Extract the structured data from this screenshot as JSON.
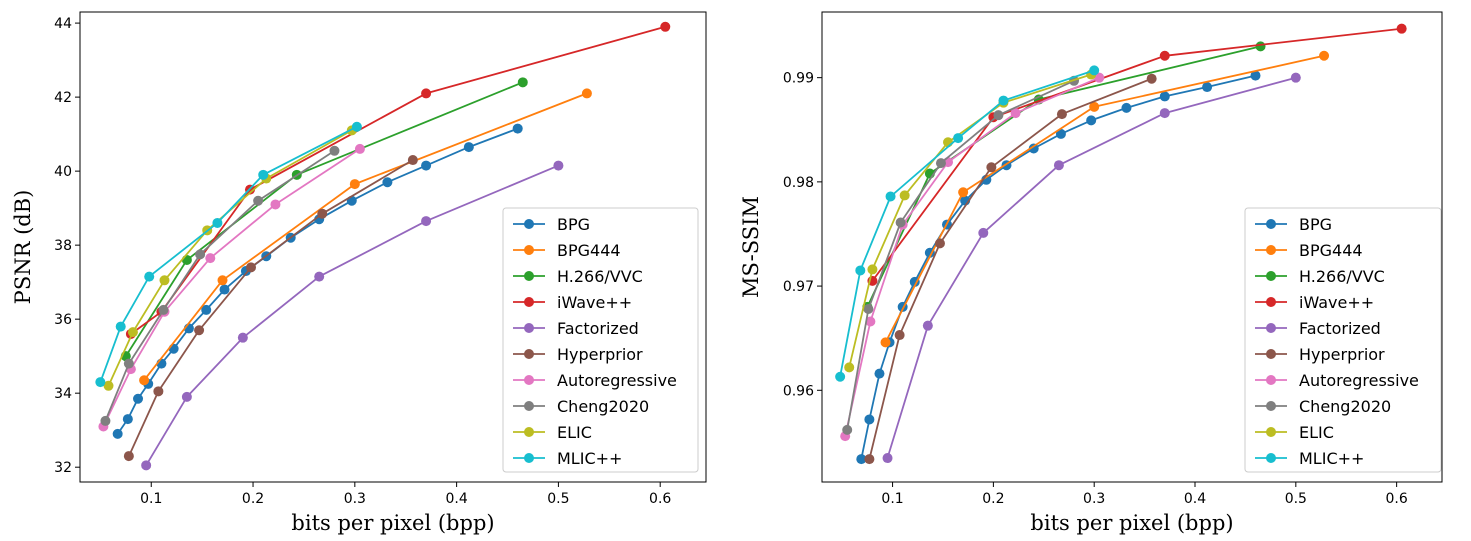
{
  "chart_data": [
    {
      "type": "line",
      "xlabel": "bits per pixel (bpp)",
      "ylabel": "PSNR (dB)",
      "xlim": [
        0.03,
        0.645
      ],
      "ylim": [
        31.6,
        44.3
      ],
      "xticks": [
        0.1,
        0.2,
        0.3,
        0.4,
        0.5,
        0.6
      ],
      "yticks": [
        32,
        34,
        36,
        38,
        40,
        42,
        44
      ],
      "xtick_labels": [
        "0.1",
        "0.2",
        "0.3",
        "0.4",
        "0.5",
        "0.6"
      ],
      "ytick_labels": [
        "32",
        "34",
        "36",
        "38",
        "40",
        "42",
        "44"
      ],
      "legend_position": "lower-right",
      "series": [
        {
          "name": "BPG",
          "color": "#1f77b4",
          "x": [
            0.067,
            0.077,
            0.087,
            0.097,
            0.11,
            0.122,
            0.137,
            0.154,
            0.172,
            0.193,
            0.213,
            0.237,
            0.265,
            0.297,
            0.332,
            0.37,
            0.412,
            0.46
          ],
          "y": [
            32.9,
            33.3,
            33.85,
            34.25,
            34.8,
            35.2,
            35.75,
            36.25,
            36.8,
            37.3,
            37.7,
            38.2,
            38.7,
            39.2,
            39.7,
            40.15,
            40.65,
            41.15
          ]
        },
        {
          "name": "BPG444",
          "color": "#ff7f0e",
          "x": [
            0.093,
            0.17,
            0.3,
            0.528
          ],
          "y": [
            34.35,
            37.05,
            39.65,
            42.1
          ]
        },
        {
          "name": "H.266/VVC",
          "color": "#2ca02c",
          "x": [
            0.075,
            0.135,
            0.243,
            0.465
          ],
          "y": [
            35.0,
            37.6,
            39.9,
            42.4
          ]
        },
        {
          "name": "iWave++",
          "color": "#d62728",
          "x": [
            0.08,
            0.11,
            0.197,
            0.37,
            0.605
          ],
          "y": [
            35.6,
            36.2,
            39.5,
            42.1,
            43.9
          ]
        },
        {
          "name": "Factorized",
          "color": "#9467bd",
          "x": [
            0.095,
            0.135,
            0.19,
            0.265,
            0.37,
            0.5
          ],
          "y": [
            32.05,
            33.9,
            35.5,
            37.15,
            38.65,
            40.15
          ]
        },
        {
          "name": "Hyperprior",
          "color": "#8c564b",
          "x": [
            0.078,
            0.107,
            0.147,
            0.198,
            0.268,
            0.357
          ],
          "y": [
            32.3,
            34.05,
            35.7,
            37.4,
            38.85,
            40.3
          ]
        },
        {
          "name": "Autoregressive",
          "color": "#e377c2",
          "x": [
            0.053,
            0.08,
            0.113,
            0.158,
            0.222,
            0.305
          ],
          "y": [
            33.1,
            34.65,
            36.2,
            37.65,
            39.1,
            40.6
          ]
        },
        {
          "name": "Cheng2020",
          "color": "#7f7f7f",
          "x": [
            0.055,
            0.078,
            0.112,
            0.148,
            0.205,
            0.28
          ],
          "y": [
            33.25,
            34.8,
            36.25,
            37.75,
            39.2,
            40.55
          ]
        },
        {
          "name": "ELIC",
          "color": "#bcbd22",
          "x": [
            0.058,
            0.082,
            0.113,
            0.155,
            0.213,
            0.297
          ],
          "y": [
            34.2,
            35.65,
            37.05,
            38.4,
            39.8,
            41.1
          ]
        },
        {
          "name": "MLIC++",
          "color": "#17becf",
          "x": [
            0.05,
            0.07,
            0.098,
            0.165,
            0.21,
            0.302
          ],
          "y": [
            34.3,
            35.8,
            37.15,
            38.6,
            39.9,
            41.2
          ]
        }
      ]
    },
    {
      "type": "line",
      "xlabel": "bits per pixel (bpp)",
      "ylabel": "MS-SSIM",
      "xlim": [
        0.03,
        0.645
      ],
      "ylim": [
        0.9512,
        0.9963
      ],
      "xticks": [
        0.1,
        0.2,
        0.3,
        0.4,
        0.5,
        0.6
      ],
      "yticks": [
        0.96,
        0.97,
        0.98,
        0.99
      ],
      "xtick_labels": [
        "0.1",
        "0.2",
        "0.3",
        "0.4",
        "0.5",
        "0.6"
      ],
      "ytick_labels": [
        "0.96",
        "0.97",
        "0.98",
        "0.99"
      ],
      "legend_position": "lower-right",
      "series": [
        {
          "name": "BPG",
          "color": "#1f77b4",
          "x": [
            0.069,
            0.077,
            0.087,
            0.097,
            0.11,
            0.122,
            0.137,
            0.154,
            0.172,
            0.193,
            0.213,
            0.24,
            0.267,
            0.297,
            0.332,
            0.37,
            0.412,
            0.46
          ],
          "y": [
            0.9534,
            0.9572,
            0.9616,
            0.9646,
            0.968,
            0.9704,
            0.9732,
            0.9759,
            0.9782,
            0.9802,
            0.9816,
            0.9832,
            0.9846,
            0.9859,
            0.9871,
            0.9882,
            0.9891,
            0.9902
          ]
        },
        {
          "name": "BPG444",
          "color": "#ff7f0e",
          "x": [
            0.093,
            0.17,
            0.3,
            0.528
          ],
          "y": [
            0.9646,
            0.979,
            0.9872,
            0.9921
          ]
        },
        {
          "name": "H.266/VVC",
          "color": "#2ca02c",
          "x": [
            0.075,
            0.137,
            0.245,
            0.465
          ],
          "y": [
            0.968,
            0.9808,
            0.9879,
            0.993
          ]
        },
        {
          "name": "iWave++",
          "color": "#d62728",
          "x": [
            0.08,
            0.2,
            0.37,
            0.605
          ],
          "y": [
            0.9705,
            0.9862,
            0.9921,
            0.9947
          ]
        },
        {
          "name": "Factorized",
          "color": "#9467bd",
          "x": [
            0.095,
            0.135,
            0.19,
            0.265,
            0.37,
            0.5
          ],
          "y": [
            0.9535,
            0.9662,
            0.9751,
            0.9816,
            0.9866,
            0.99
          ]
        },
        {
          "name": "Hyperprior",
          "color": "#8c564b",
          "x": [
            0.077,
            0.107,
            0.147,
            0.198,
            0.268,
            0.357
          ],
          "y": [
            0.9534,
            0.9653,
            0.9741,
            0.9814,
            0.9865,
            0.9899
          ]
        },
        {
          "name": "Autoregressive",
          "color": "#e377c2",
          "x": [
            0.053,
            0.078,
            0.11,
            0.155,
            0.222,
            0.305
          ],
          "y": [
            0.9556,
            0.9666,
            0.9759,
            0.9819,
            0.9866,
            0.99
          ]
        },
        {
          "name": "Cheng2020",
          "color": "#7f7f7f",
          "x": [
            0.055,
            0.076,
            0.108,
            0.148,
            0.205,
            0.28
          ],
          "y": [
            0.9562,
            0.9678,
            0.9761,
            0.9818,
            0.9864,
            0.9897
          ]
        },
        {
          "name": "ELIC",
          "color": "#bcbd22",
          "x": [
            0.057,
            0.08,
            0.112,
            0.155,
            0.21,
            0.297
          ],
          "y": [
            0.9622,
            0.9716,
            0.9787,
            0.9838,
            0.9876,
            0.9903
          ]
        },
        {
          "name": "MLIC++",
          "color": "#17becf",
          "x": [
            0.048,
            0.068,
            0.098,
            0.165,
            0.21,
            0.3
          ],
          "y": [
            0.9613,
            0.9715,
            0.9786,
            0.9842,
            0.9878,
            0.9907
          ]
        }
      ]
    }
  ]
}
